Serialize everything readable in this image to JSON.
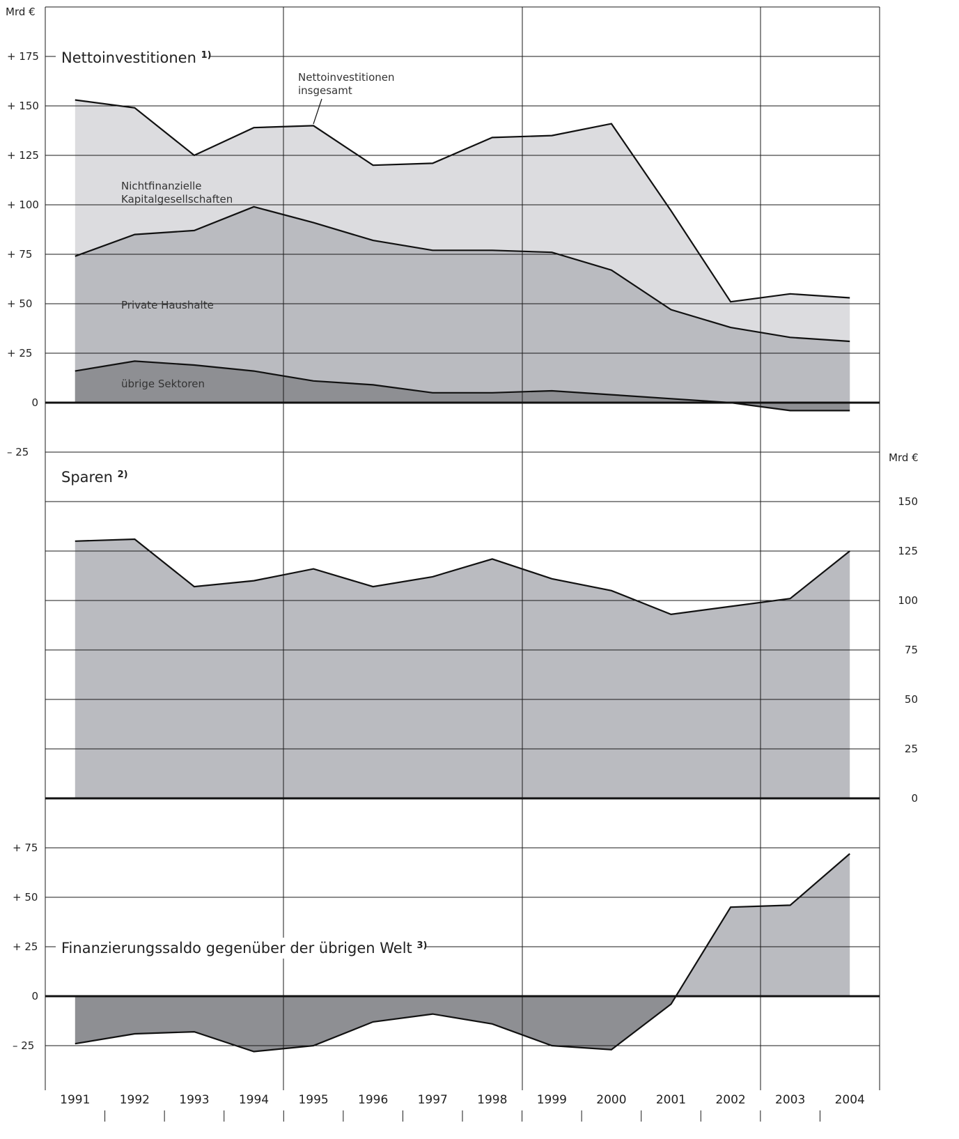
{
  "page_background": "#ffffff",
  "colors": {
    "light_gray": "#dcdcdf",
    "mid_gray": "#babbc0",
    "dark_gray": "#8e8f93",
    "line": "#111111",
    "grid": "#1a1a1a"
  },
  "chart_data": [
    {
      "type": "area",
      "id": "nettoinvestitionen",
      "stacked": true,
      "title": "Nettoinvestitionen",
      "title_footnote": "1)",
      "unit_label": "Mrd €",
      "ylim": [
        -25,
        200
      ],
      "yticks": [
        175,
        150,
        125,
        100,
        75,
        50,
        25,
        0,
        -25
      ],
      "ytick_labels": [
        "+ 175",
        "+ 150",
        "+ 125",
        "+ 100",
        "+  75",
        "+  50",
        "+  25",
        "0",
        "–  25"
      ],
      "x": [
        "1991",
        "1992",
        "1993",
        "1994",
        "1995",
        "1996",
        "1997",
        "1998",
        "1999",
        "2000",
        "2001",
        "2002",
        "2003",
        "2004"
      ],
      "series": [
        {
          "name": "übrige Sektoren",
          "color": "#8e8f93",
          "values": [
            16,
            21,
            19,
            16,
            11,
            9,
            5,
            5,
            6,
            4,
            2,
            0,
            -4,
            -4
          ]
        },
        {
          "name": "Private Haushalte",
          "color": "#babbc0",
          "values": [
            58,
            64,
            68,
            83,
            80,
            73,
            72,
            72,
            70,
            63,
            45,
            38,
            37,
            35
          ]
        },
        {
          "name": "Nichtfinanzielle Kapitalgesellschaften",
          "color": "#dcdcdf",
          "values": [
            79,
            64,
            38,
            40,
            49,
            38,
            44,
            57,
            59,
            74,
            50,
            13,
            22,
            22
          ]
        }
      ],
      "total_label": "Nettoinvestitionen insgesamt",
      "annotations": [
        "Nettoinvestitionen",
        "insgesamt",
        "Nichtfinanzielle",
        "Kapitalgesellschaften",
        "Private Haushalte",
        "übrige Sektoren"
      ],
      "grid": true
    },
    {
      "type": "area",
      "id": "sparen",
      "title": "Sparen",
      "title_footnote": "2)",
      "unit_label": "Mrd €",
      "ylim": [
        0,
        175
      ],
      "yticks": [
        150,
        125,
        100,
        75,
        50,
        25,
        0
      ],
      "ytick_labels": [
        "150",
        "125",
        "100",
        "75",
        "50",
        "25",
        "0"
      ],
      "x": [
        "1991",
        "1992",
        "1993",
        "1994",
        "1995",
        "1996",
        "1997",
        "1998",
        "1999",
        "2000",
        "2001",
        "2002",
        "2003",
        "2004"
      ],
      "series": [
        {
          "color": "#babbc0",
          "values": [
            130,
            131,
            107,
            110,
            116,
            107,
            112,
            121,
            111,
            105,
            93,
            97,
            101,
            125
          ]
        }
      ],
      "axis_side": "right",
      "grid": true
    },
    {
      "type": "area",
      "id": "finanzierungssaldo",
      "title": "Finanzierungssaldo gegenüber der übrigen Welt",
      "title_footnote": "3)",
      "ylim": [
        -50,
        100
      ],
      "yticks": [
        75,
        50,
        25,
        0,
        -25
      ],
      "ytick_labels": [
        "+ 75",
        "+ 50",
        "+ 25",
        "0",
        "– 25"
      ],
      "x": [
        "1991",
        "1992",
        "1993",
        "1994",
        "1995",
        "1996",
        "1997",
        "1998",
        "1999",
        "2000",
        "2001",
        "2002",
        "2003",
        "2004"
      ],
      "series": [
        {
          "color": "#babbc0",
          "negative_color": "#8e8f93",
          "values": [
            -24,
            -19,
            -18,
            -28,
            -25,
            -13,
            -9,
            -14,
            -25,
            -27,
            -4,
            45,
            46,
            72
          ]
        }
      ],
      "grid": true
    }
  ],
  "x_axis": {
    "years": [
      "1991",
      "1992",
      "1993",
      "1994",
      "1995",
      "1996",
      "1997",
      "1998",
      "1999",
      "2000",
      "2001",
      "2002",
      "2003",
      "2004"
    ]
  }
}
